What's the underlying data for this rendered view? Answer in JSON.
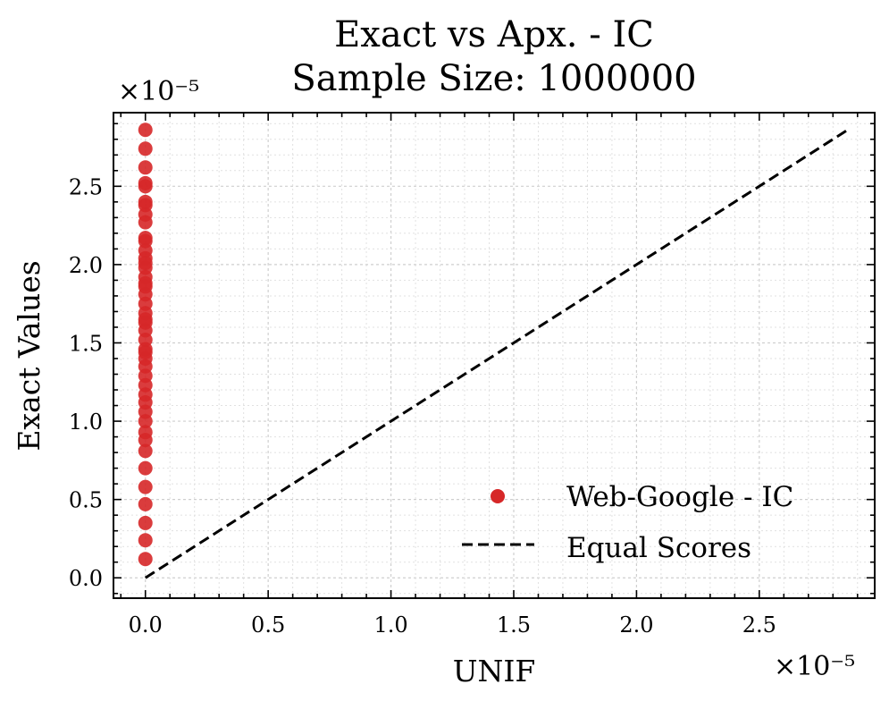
{
  "chart_data": {
    "type": "scatter",
    "title": "Exact vs Apx. - IC",
    "subtitle": "Sample Size: 1000000",
    "xlabel": "UNIF",
    "ylabel": "Exact Values",
    "x_offset_label": "×10⁻⁵",
    "y_offset_label": "×10⁻⁵",
    "scale": 1e-05,
    "xlim": [
      -0.13,
      2.97
    ],
    "ylim": [
      -0.13,
      2.97
    ],
    "xticks": [
      0.0,
      0.5,
      1.0,
      1.5,
      2.0,
      2.5
    ],
    "yticks": [
      0.0,
      0.5,
      1.0,
      1.5,
      2.0,
      2.5
    ],
    "xtick_labels": [
      "0.0",
      "0.5",
      "1.0",
      "1.5",
      "2.0",
      "2.5"
    ],
    "ytick_labels": [
      "0.0",
      "0.5",
      "1.0",
      "1.5",
      "2.0",
      "2.5"
    ],
    "grid": true,
    "legend_position": "lower-right",
    "series": [
      {
        "name": "Web-Google - IC",
        "kind": "scatter",
        "color": "#d62728",
        "x": [
          0,
          0,
          0,
          0,
          0,
          0,
          0,
          0,
          0,
          0,
          0,
          0,
          0,
          0,
          0,
          0,
          0,
          0,
          0,
          0,
          0,
          0,
          0,
          0,
          0,
          0,
          0,
          0,
          0,
          0,
          0,
          0,
          0,
          0,
          0,
          0,
          0,
          0,
          0,
          0,
          0,
          0,
          0,
          0
        ],
        "y": [
          0.12,
          0.24,
          0.35,
          0.47,
          0.58,
          0.7,
          0.81,
          0.93,
          1.0,
          1.06,
          1.12,
          1.17,
          1.23,
          1.29,
          1.35,
          1.4,
          1.46,
          1.52,
          1.58,
          1.63,
          1.69,
          1.75,
          1.81,
          1.86,
          1.92,
          1.98,
          2.04,
          2.09,
          2.15,
          2.17,
          2.27,
          2.32,
          2.38,
          2.4,
          2.5,
          2.52,
          2.62,
          2.74,
          2.86,
          0.88,
          1.44,
          1.65,
          1.88,
          2.01
        ]
      },
      {
        "name": "Equal Scores",
        "kind": "line",
        "style": "dashed",
        "color": "#000000",
        "x": [
          0,
          2.86
        ],
        "y": [
          0,
          2.86
        ]
      }
    ]
  }
}
